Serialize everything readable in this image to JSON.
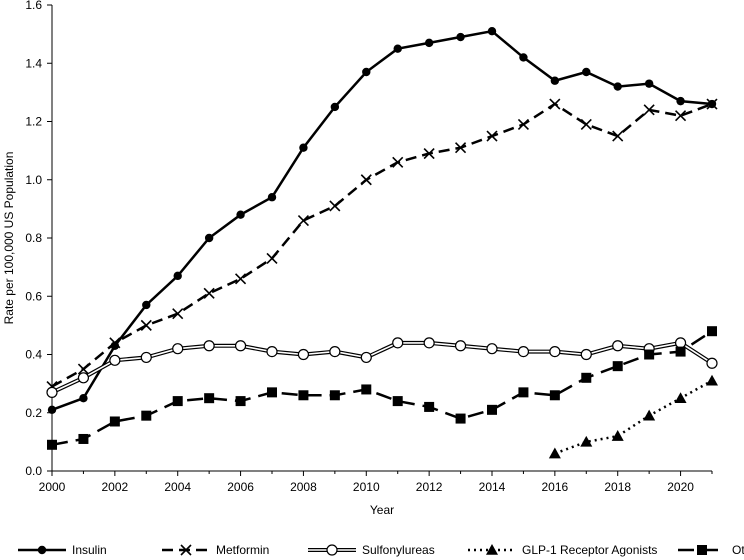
{
  "chart_data": {
    "type": "line",
    "title": "",
    "xlabel": "Year",
    "ylabel": "Rate per 100,000 US Population",
    "xlim": [
      2000,
      2021
    ],
    "ylim": [
      0,
      1.6
    ],
    "x_ticks": [
      "2000",
      "2002",
      "2004",
      "2006",
      "2008",
      "2010",
      "2012",
      "2014",
      "2016",
      "2018",
      "2020"
    ],
    "y_ticks": [
      "0.0",
      "0.2",
      "0.4",
      "0.6",
      "0.8",
      "1.0",
      "1.2",
      "1.4",
      "1.6"
    ],
    "grid": false,
    "legend_position": "bottom",
    "series": [
      {
        "name": "Insulin",
        "style": "solid",
        "marker": "filled-circle",
        "color": "#000000",
        "x": [
          2000,
          2001,
          2002,
          2003,
          2004,
          2005,
          2006,
          2007,
          2008,
          2009,
          2010,
          2011,
          2012,
          2013,
          2014,
          2015,
          2016,
          2017,
          2018,
          2019,
          2020,
          2021
        ],
        "values": [
          0.21,
          0.25,
          0.43,
          0.57,
          0.67,
          0.8,
          0.88,
          0.94,
          1.11,
          1.25,
          1.37,
          1.45,
          1.47,
          1.49,
          1.51,
          1.42,
          1.34,
          1.37,
          1.32,
          1.33,
          1.27,
          1.26
        ]
      },
      {
        "name": "Metformin",
        "style": "dashed",
        "marker": "x",
        "color": "#000000",
        "x": [
          2000,
          2001,
          2002,
          2003,
          2004,
          2005,
          2006,
          2007,
          2008,
          2009,
          2010,
          2011,
          2012,
          2013,
          2014,
          2015,
          2016,
          2017,
          2018,
          2019,
          2020,
          2021
        ],
        "values": [
          0.29,
          0.35,
          0.44,
          0.5,
          0.54,
          0.61,
          0.66,
          0.73,
          0.86,
          0.91,
          1.0,
          1.06,
          1.09,
          1.11,
          1.15,
          1.19,
          1.26,
          1.19,
          1.15,
          1.24,
          1.22,
          1.26
        ]
      },
      {
        "name": "Sulfonylureas",
        "style": "double",
        "marker": "open-circle",
        "color": "#000000",
        "x": [
          2000,
          2001,
          2002,
          2003,
          2004,
          2005,
          2006,
          2007,
          2008,
          2009,
          2010,
          2011,
          2012,
          2013,
          2014,
          2015,
          2016,
          2017,
          2018,
          2019,
          2020,
          2021
        ],
        "values": [
          0.27,
          0.32,
          0.38,
          0.39,
          0.42,
          0.43,
          0.43,
          0.41,
          0.4,
          0.41,
          0.39,
          0.44,
          0.44,
          0.43,
          0.42,
          0.41,
          0.41,
          0.4,
          0.43,
          0.42,
          0.44,
          0.37
        ]
      },
      {
        "name": "GLP-1 Receptor Agonists",
        "style": "dotted",
        "marker": "triangle",
        "color": "#000000",
        "x": [
          2016,
          2017,
          2018,
          2019,
          2020,
          2021
        ],
        "values": [
          0.06,
          0.1,
          0.12,
          0.19,
          0.25,
          0.31
        ]
      },
      {
        "name": "Other",
        "style": "long-dash",
        "marker": "square",
        "color": "#000000",
        "x": [
          2000,
          2001,
          2002,
          2003,
          2004,
          2005,
          2006,
          2007,
          2008,
          2009,
          2010,
          2011,
          2012,
          2013,
          2014,
          2015,
          2016,
          2017,
          2018,
          2019,
          2020,
          2021
        ],
        "values": [
          0.09,
          0.11,
          0.17,
          0.19,
          0.24,
          0.25,
          0.24,
          0.27,
          0.26,
          0.26,
          0.28,
          0.24,
          0.22,
          0.18,
          0.21,
          0.27,
          0.26,
          0.32,
          0.36,
          0.4,
          0.41,
          0.48
        ]
      }
    ]
  }
}
